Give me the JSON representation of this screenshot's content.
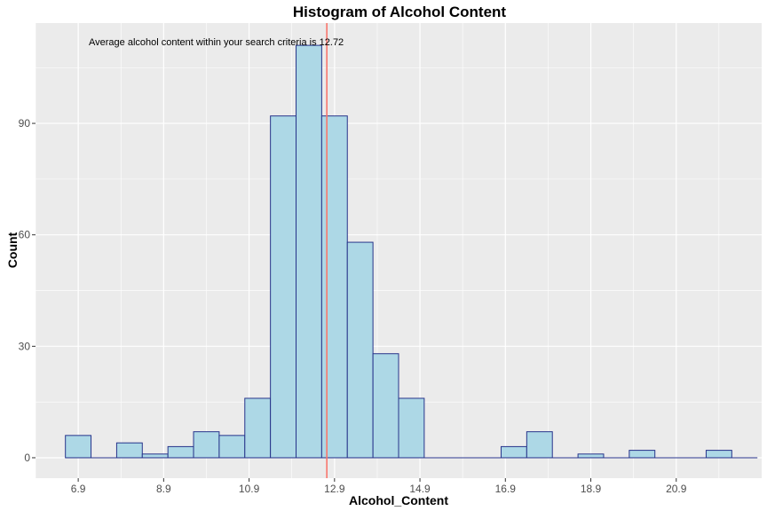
{
  "chart_data": {
    "type": "bar",
    "title": "Histogram of Alcohol Content",
    "xlabel": "Alcohol_Content",
    "ylabel": "Count",
    "annotation": "Average alcohol content within your search criteria is  12.72",
    "mean_line": 12.72,
    "bin_width": 0.6,
    "xlim": [
      5.9,
      22.9
    ],
    "ylim": [
      -5.5,
      117
    ],
    "x_ticks": [
      6.9,
      8.9,
      10.9,
      12.9,
      14.9,
      16.9,
      18.9,
      20.9
    ],
    "x_tick_labels": [
      "6.9",
      "8.9",
      "10.9",
      "12.9",
      "14.9",
      "16.9",
      "18.9",
      "20.9"
    ],
    "y_ticks": [
      0,
      30,
      60,
      90
    ],
    "y_tick_labels": [
      "0",
      "30",
      "60",
      "90"
    ],
    "bin_centers": [
      6.9,
      7.5,
      8.1,
      8.7,
      9.3,
      9.9,
      10.5,
      11.1,
      11.7,
      12.3,
      12.9,
      13.5,
      14.1,
      14.7,
      15.3,
      15.9,
      16.5,
      17.1,
      17.7,
      18.3,
      18.9,
      19.5,
      20.1,
      20.7,
      21.3,
      21.9
    ],
    "counts": [
      6,
      0,
      4,
      1,
      3,
      7,
      6,
      16,
      92,
      111,
      92,
      58,
      28,
      16,
      0,
      0,
      0,
      3,
      7,
      0,
      1,
      0,
      2,
      0,
      0,
      2
    ],
    "grid": true,
    "colors": {
      "panel": "#ebebeb",
      "grid": "#ffffff",
      "bar_fill": "#add8e6",
      "bar_stroke": "#27348b",
      "mean_line": "#f8766d"
    }
  }
}
